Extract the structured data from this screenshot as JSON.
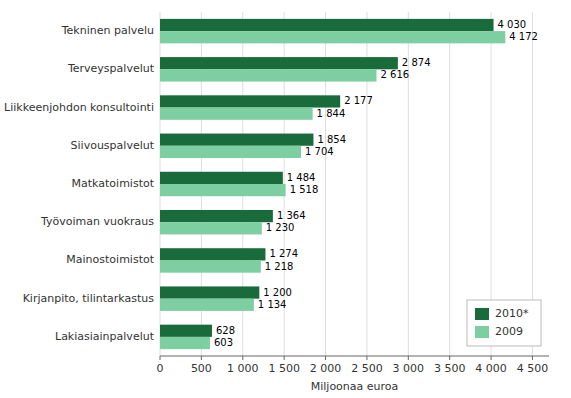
{
  "chart_data": {
    "type": "bar",
    "orientation": "horizontal",
    "categories": [
      "Tekninen palvelu",
      "Terveyspalvelut",
      "Liikkeenjohdon konsultointi",
      "Siivouspalvelut",
      "Matkatoimistot",
      "Työvoiman vuokraus",
      "Mainostoimistot",
      "Kirjanpito, tilintarkastus",
      "Lakiasiainpalvelut"
    ],
    "series": [
      {
        "name": "2010*",
        "color": "#1a6b3c",
        "values": [
          4030,
          2874,
          2177,
          1854,
          1484,
          1364,
          1274,
          1200,
          628
        ],
        "value_labels": [
          "4 030",
          "2 874",
          "2 177",
          "1 854",
          "1 484",
          "1 364",
          "1 274",
          "1 200",
          "628"
        ]
      },
      {
        "name": "2009",
        "color": "#7dcea0",
        "values": [
          4172,
          2616,
          1844,
          1704,
          1518,
          1230,
          1218,
          1134,
          603
        ],
        "value_labels": [
          "4 172",
          "2 616",
          "1 844",
          "1 704",
          "1 518",
          "1 230",
          "1 218",
          "1 134",
          "603"
        ]
      }
    ],
    "xlabel": "Miljoonaa euroa",
    "xlim": [
      0,
      4700
    ],
    "xticks": [
      0,
      500,
      {
        "value": 1000,
        "label": "1 000"
      },
      {
        "value": 1500,
        "label": "1 500"
      },
      {
        "value": 2000,
        "label": "2 000"
      },
      {
        "value": 2500,
        "label": "2 500"
      },
      {
        "value": 3000,
        "label": "3 000"
      },
      {
        "value": 3500,
        "label": "3 500"
      },
      {
        "value": 4000,
        "label": "4 000"
      },
      {
        "value": 4500,
        "label": "4 500"
      }
    ],
    "grid": true,
    "legend": "lower right",
    "data_labels": true
  }
}
